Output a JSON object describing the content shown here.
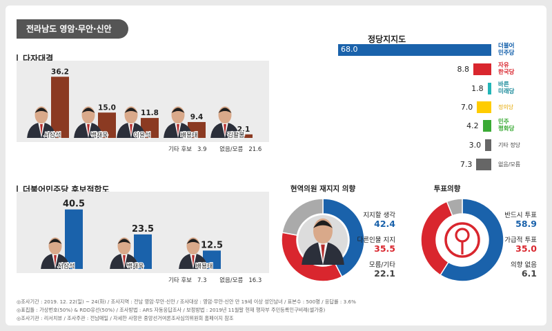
{
  "header": {
    "region": "전라남도 영암·무안·신안"
  },
  "multi_race": {
    "title": "다자대결",
    "etc_label": "기타 후보",
    "etc_value": "3.9",
    "none_label": "없음/모름",
    "none_value": "21.6",
    "candidates": [
      {
        "name": "서삼석",
        "value": 36.2
      },
      {
        "name": "백재욱",
        "value": 15.0
      },
      {
        "name": "이윤석",
        "value": 11.8
      },
      {
        "name": "배용태",
        "value": 9.4
      },
      {
        "name": "김팔봉",
        "value": 2.1
      }
    ]
  },
  "dem_fit": {
    "title": "더불어민주당 후보적합도",
    "etc_label": "기타 후보",
    "etc_value": "7.3",
    "none_label": "없음/모름",
    "none_value": "16.3",
    "candidates": [
      {
        "name": "서삼석",
        "value": 40.5
      },
      {
        "name": "백재욱",
        "value": 23.5
      },
      {
        "name": "배용태",
        "value": 12.5
      }
    ]
  },
  "party_support": {
    "title": "정당지지도",
    "parties": [
      {
        "logo": "더불어\n민주당",
        "value": 68.0,
        "color": "#1a62ab",
        "logo_color": "#0b5aa8"
      },
      {
        "logo": "자유\n한국당",
        "value": 8.8,
        "color": "#d9262e",
        "logo_color": "#d9262e"
      },
      {
        "logo": "바른\n미래당",
        "value": 1.8,
        "color": "#22b5b7",
        "logo_color": "#1a8a9a"
      },
      {
        "logo": "정의당",
        "value": 7.0,
        "color": "#ffcc00",
        "logo_color": "#e6a800"
      },
      {
        "logo": "민주\n평화당",
        "value": 4.2,
        "color": "#3aaa35",
        "logo_color": "#3aaa35"
      },
      {
        "logo": "기타 정당",
        "value": 3.0,
        "color": "#666666",
        "logo_color": "#444444"
      },
      {
        "logo": "없음/모름",
        "value": 7.3,
        "color": "#666666",
        "logo_color": "#444444"
      }
    ]
  },
  "chart_data": [
    {
      "type": "bar",
      "title": "다자대결",
      "categories": [
        "서삼석",
        "백재욱",
        "이윤석",
        "배용태",
        "김팔봉",
        "기타 후보",
        "없음/모름"
      ],
      "values": [
        36.2,
        15.0,
        11.8,
        9.4,
        2.1,
        3.9,
        21.6
      ],
      "ylim": [
        0,
        50
      ]
    },
    {
      "type": "bar",
      "title": "더불어민주당 후보적합도",
      "categories": [
        "서삼석",
        "백재욱",
        "배용태",
        "기타 후보",
        "없음/모름"
      ],
      "values": [
        40.5,
        23.5,
        12.5,
        7.3,
        16.3
      ],
      "ylim": [
        0,
        50
      ]
    },
    {
      "type": "bar",
      "title": "정당지지도",
      "categories": [
        "더불어민주당",
        "자유한국당",
        "바른미래당",
        "정의당",
        "민주평화당",
        "기타 정당",
        "없음/모름"
      ],
      "values": [
        68.0,
        8.8,
        1.8,
        7.0,
        4.2,
        3.0,
        7.3
      ],
      "xlim": [
        0,
        70
      ]
    },
    {
      "type": "pie",
      "title": "현역의원 재지지 의향",
      "categories": [
        "지지할 생각",
        "다른인물 지지",
        "모름/기타"
      ],
      "values": [
        42.4,
        35.5,
        22.1
      ],
      "colors": [
        "#1a62ab",
        "#d9262e",
        "#aaaaaa"
      ]
    },
    {
      "type": "pie",
      "title": "투표의향",
      "categories": [
        "반드시 투표",
        "가급적 투표",
        "의향 없음"
      ],
      "values": [
        58.9,
        35.0,
        6.1
      ],
      "colors": [
        "#1a62ab",
        "#d9262e",
        "#aaaaaa"
      ]
    }
  ],
  "reelect": {
    "title": "현역의원 재지지 의향",
    "items": [
      {
        "label": "지지할 생각",
        "value": "42.4",
        "color": "#1a62ab"
      },
      {
        "label": "다른인물 지지",
        "value": "35.5",
        "color": "#d9262e"
      },
      {
        "label": "모름/기타",
        "value": "22.1",
        "color": "#444444"
      }
    ]
  },
  "vote_intent": {
    "title": "투표의향",
    "items": [
      {
        "label": "반드시 투표",
        "value": "58.9",
        "color": "#1a62ab"
      },
      {
        "label": "가급적 투표",
        "value": "35.0",
        "color": "#d9262e"
      },
      {
        "label": "의향 없음",
        "value": "6.1",
        "color": "#444444"
      }
    ]
  },
  "footnotes": [
    "◎조사기간 : 2019. 12. 22(일) ~ 24(화) / 조사지역 : 전남 영암·무안·신안 / 조사대상 : 영암·무안·신안 만 19세 이상 성인남녀 / 표본수 : 500명 / 응답률 : 3.6%",
    "◎표집틀 : 가상번호(50%) & RDD유선(50%) / 조사방법 : ARS 자동응답조사 / 보정방법 : 2019년 11월말 현재 행자부 주민등록인구비례(셀가중)",
    "◎조사기관 : 리서치뷰 / 조사주관 : 전남매일 / 자세한 사항은 중앙선거여론조사심의위원회 홈페이지 참조"
  ]
}
